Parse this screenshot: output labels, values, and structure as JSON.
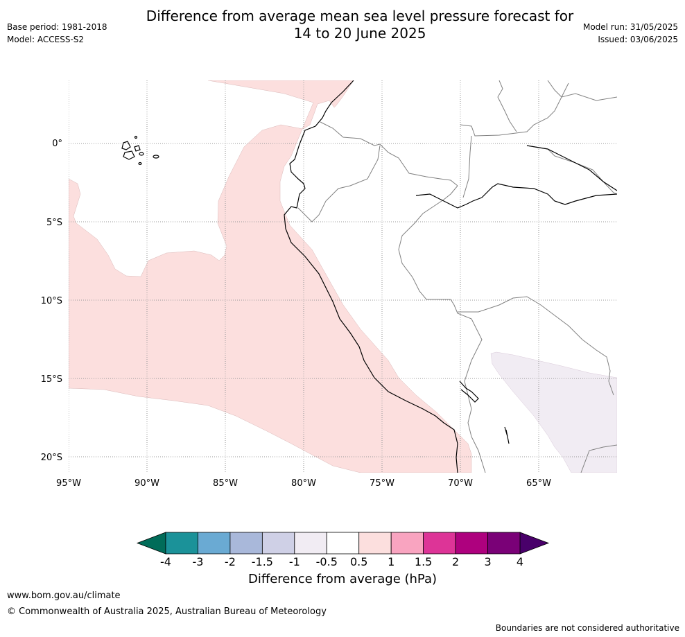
{
  "header": {
    "title_line1": "Difference from average mean sea level pressure forecast for",
    "title_line2": "14 to 20 June 2025",
    "base_period": "Base period: 1981-2018",
    "model": "Model: ACCESS-S2",
    "model_run": "Model run: 31/05/2025",
    "issued": "Issued: 03/06/2025"
  },
  "map": {
    "lat_labels": [
      "0°",
      "5°S",
      "10°S",
      "15°S",
      "20°S"
    ],
    "lon_labels": [
      "95°W",
      "90°W",
      "85°W",
      "80°W",
      "75°W",
      "70°W",
      "65°W"
    ],
    "anomaly_colors": {
      "positive_0_5_to_1": "#fcdfde",
      "negative_0_5_to_1": "#f1ecf3",
      "coastline": "#000000",
      "borders": "#808080"
    }
  },
  "colorbar": {
    "ticks": [
      "-4",
      "-3",
      "-2",
      "-1.5",
      "-1",
      "-0.5",
      "0.5",
      "1",
      "1.5",
      "2",
      "3",
      "4"
    ],
    "colors": [
      "#1b9299",
      "#6aaad3",
      "#a9b8da",
      "#cfd0e6",
      "#f1ecf3",
      "#ffffff",
      "#fcdfde",
      "#f9a4c0",
      "#dd3497",
      "#ae017e",
      "#7a0177"
    ],
    "under_color": "#016c59",
    "over_color": "#49006a",
    "label": "Difference from average (hPa)"
  },
  "footer": {
    "url": "www.bom.gov.au/climate",
    "copyright": "© Commonwealth of Australia 2025, Australian Bureau of Meteorology",
    "note": "Boundaries are not considered authoritative"
  }
}
